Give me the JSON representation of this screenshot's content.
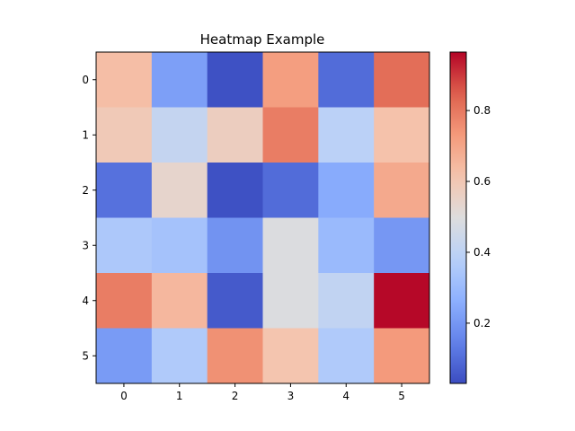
{
  "chart_data": {
    "type": "heatmap",
    "title": "Heatmap Example",
    "x_ticks": [
      "0",
      "1",
      "2",
      "3",
      "4",
      "5"
    ],
    "y_ticks": [
      "0",
      "1",
      "2",
      "3",
      "4",
      "5"
    ],
    "values": [
      [
        0.63,
        0.22,
        0.04,
        0.72,
        0.1,
        0.82
      ],
      [
        0.59,
        0.42,
        0.57,
        0.79,
        0.39,
        0.62
      ],
      [
        0.11,
        0.54,
        0.04,
        0.1,
        0.25,
        0.69
      ],
      [
        0.35,
        0.33,
        0.19,
        0.49,
        0.3,
        0.2
      ],
      [
        0.79,
        0.65,
        0.06,
        0.49,
        0.41,
        0.96
      ],
      [
        0.21,
        0.36,
        0.75,
        0.61,
        0.36,
        0.73
      ]
    ],
    "colormap": "coolwarm",
    "color_min": 0.03,
    "color_max": 0.965,
    "colorbar_ticks": [
      {
        "value": 0.2,
        "label": "0.2"
      },
      {
        "value": 0.4,
        "label": "0.4"
      },
      {
        "value": 0.6,
        "label": "0.6"
      },
      {
        "value": 0.8,
        "label": "0.8"
      }
    ],
    "grid": false,
    "colorbar": true
  }
}
